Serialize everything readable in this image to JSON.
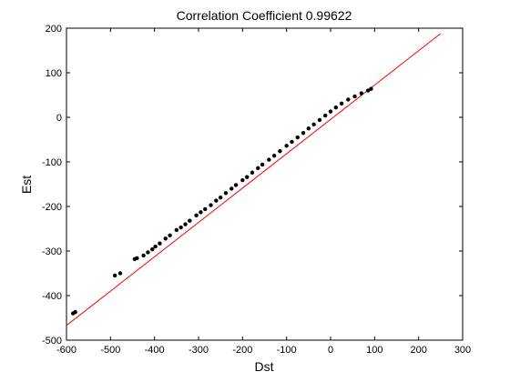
{
  "chart_data": {
    "type": "scatter",
    "title": "Correlation Coefficient 0.99622",
    "xlabel": "Dst",
    "ylabel": "Est",
    "xlim": [
      -600,
      300
    ],
    "ylim": [
      -500,
      200
    ],
    "xticks": [
      -600,
      -500,
      -400,
      -300,
      -200,
      -100,
      0,
      100,
      200,
      300
    ],
    "yticks": [
      -500,
      -400,
      -300,
      -200,
      -100,
      0,
      100,
      200
    ],
    "xtick_labels": [
      "-600",
      "-500",
      "-400",
      "-300",
      "-200",
      "-100",
      "0",
      "100",
      "200",
      "300"
    ],
    "ytick_labels": [
      "-500",
      "-400",
      "-300",
      "-200",
      "-100",
      "0",
      "100",
      "200"
    ],
    "grid": false,
    "marker_color": "#000000",
    "points": [
      [
        -585,
        -440
      ],
      [
        -580,
        -437
      ],
      [
        -490,
        -355
      ],
      [
        -478,
        -350
      ],
      [
        -445,
        -318
      ],
      [
        -440,
        -316
      ],
      [
        -425,
        -310
      ],
      [
        -415,
        -303
      ],
      [
        -405,
        -296
      ],
      [
        -398,
        -290
      ],
      [
        -388,
        -283
      ],
      [
        -375,
        -272
      ],
      [
        -365,
        -265
      ],
      [
        -350,
        -253
      ],
      [
        -340,
        -247
      ],
      [
        -330,
        -240
      ],
      [
        -320,
        -232
      ],
      [
        -305,
        -220
      ],
      [
        -295,
        -213
      ],
      [
        -285,
        -206
      ],
      [
        -272,
        -197
      ],
      [
        -260,
        -187
      ],
      [
        -250,
        -180
      ],
      [
        -238,
        -170
      ],
      [
        -225,
        -160
      ],
      [
        -215,
        -152
      ],
      [
        -200,
        -141
      ],
      [
        -190,
        -134
      ],
      [
        -178,
        -124
      ],
      [
        -165,
        -114
      ],
      [
        -155,
        -106
      ],
      [
        -140,
        -95
      ],
      [
        -128,
        -86
      ],
      [
        -115,
        -76
      ],
      [
        -100,
        -64
      ],
      [
        -88,
        -55
      ],
      [
        -75,
        -45
      ],
      [
        -62,
        -35
      ],
      [
        -50,
        -25
      ],
      [
        -38,
        -16
      ],
      [
        -25,
        -6
      ],
      [
        -12,
        4
      ],
      [
        0,
        13
      ],
      [
        12,
        22
      ],
      [
        25,
        31
      ],
      [
        40,
        40
      ],
      [
        55,
        47
      ],
      [
        70,
        54
      ],
      [
        85,
        60
      ],
      [
        92,
        64
      ]
    ],
    "reference_line": {
      "color": "#ff0000",
      "from": [
        -600,
        -467
      ],
      "to": [
        250,
        188
      ]
    }
  }
}
